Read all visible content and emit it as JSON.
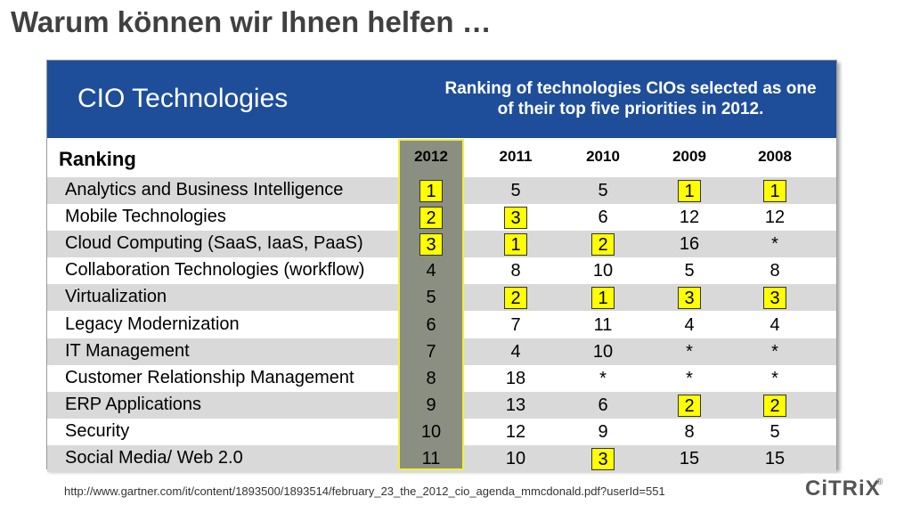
{
  "slide": {
    "title": "Warum können wir Ihnen helfen …",
    "source_url": "http://www.gartner.com/it/content/1893500/1893514/february_23_the_2012_cio_agenda_mmcdonald.pdf?userId=551",
    "logo_text": "CiTRiX",
    "logo_reg": "®"
  },
  "chart_data": {
    "type": "table",
    "title": "CIO Technologies",
    "subtitle": "Ranking of technologies CIOs selected as one of their top five priorities in 2012.",
    "header_label": "Ranking",
    "years": [
      "2012",
      "2011",
      "2010",
      "2009",
      "2008"
    ],
    "highlight_column": "2012",
    "rows": [
      {
        "label": "Analytics and Business Intelligence",
        "values": [
          "1",
          "5",
          "5",
          "1",
          "1"
        ],
        "boxed": [
          true,
          false,
          false,
          true,
          true
        ]
      },
      {
        "label": "Mobile Technologies",
        "values": [
          "2",
          "3",
          "6",
          "12",
          "12"
        ],
        "boxed": [
          true,
          true,
          false,
          false,
          false
        ]
      },
      {
        "label": "Cloud Computing (SaaS, IaaS, PaaS)",
        "values": [
          "3",
          "1",
          "2",
          "16",
          "*"
        ],
        "boxed": [
          true,
          true,
          true,
          false,
          false
        ]
      },
      {
        "label": "Collaboration Technologies (workflow)",
        "values": [
          "4",
          "8",
          "10",
          "5",
          "8"
        ],
        "boxed": [
          false,
          false,
          false,
          false,
          false
        ]
      },
      {
        "label": "Virtualization",
        "values": [
          "5",
          "2",
          "1",
          "3",
          "3"
        ],
        "boxed": [
          false,
          true,
          true,
          true,
          true
        ]
      },
      {
        "label": "Legacy Modernization",
        "values": [
          "6",
          "7",
          "11",
          "4",
          "4"
        ],
        "boxed": [
          false,
          false,
          false,
          false,
          false
        ]
      },
      {
        "label": "IT Management",
        "values": [
          "7",
          "4",
          "10",
          "*",
          "*"
        ],
        "boxed": [
          false,
          false,
          false,
          false,
          false
        ]
      },
      {
        "label": "Customer Relationship Management",
        "values": [
          "8",
          "18",
          "*",
          "*",
          "*"
        ],
        "boxed": [
          false,
          false,
          false,
          false,
          false
        ]
      },
      {
        "label": "ERP Applications",
        "values": [
          "9",
          "13",
          "6",
          "2",
          "2"
        ],
        "boxed": [
          false,
          false,
          false,
          true,
          true
        ]
      },
      {
        "label": "Security",
        "values": [
          "10",
          "12",
          "9",
          "8",
          "5"
        ],
        "boxed": [
          false,
          false,
          false,
          false,
          false
        ]
      },
      {
        "label": "Social Media/ Web 2.0",
        "values": [
          "11",
          "10",
          "3",
          "15",
          "15"
        ],
        "boxed": [
          false,
          false,
          true,
          false,
          false
        ]
      }
    ],
    "colors": {
      "banner": "#1e4e9a",
      "highlight_column_fill": "#8a8f82",
      "highlight_column_border": "#f2ef3c",
      "box_fill": "#ffff00",
      "row_shade": "#d9d9d9"
    }
  }
}
